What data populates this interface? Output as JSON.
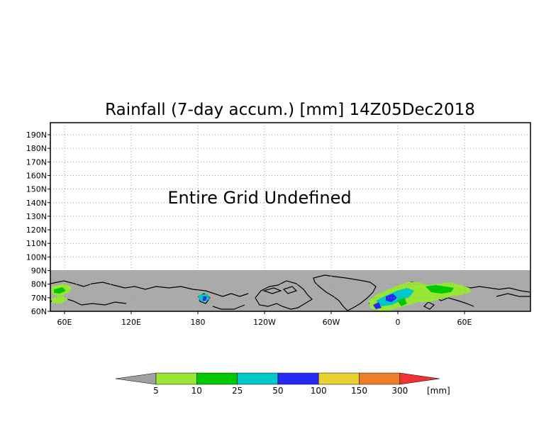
{
  "title": "Rainfall (7-day accum.) [mm] 14Z05Dec2018",
  "notice": "Entire Grid Undefined",
  "map": {
    "y_ticks": [
      "190N",
      "180N",
      "170N",
      "160N",
      "150N",
      "140N",
      "130N",
      "120N",
      "110N",
      "100N",
      "90N",
      "80N",
      "70N",
      "60N"
    ],
    "x_ticks": [
      "60E",
      "120E",
      "180",
      "120W",
      "60W",
      "0",
      "60E"
    ],
    "grid": true,
    "undefined_fill_color": "#aaaaaa"
  },
  "colorbar": {
    "unit": "[mm]",
    "labels": [
      "5",
      "10",
      "25",
      "50",
      "100",
      "150",
      "300"
    ],
    "colors": [
      "#a0a0a0",
      "#96e633",
      "#00c800",
      "#00c8c8",
      "#2828f5",
      "#e6d232",
      "#f07d28",
      "#f03232"
    ]
  }
}
